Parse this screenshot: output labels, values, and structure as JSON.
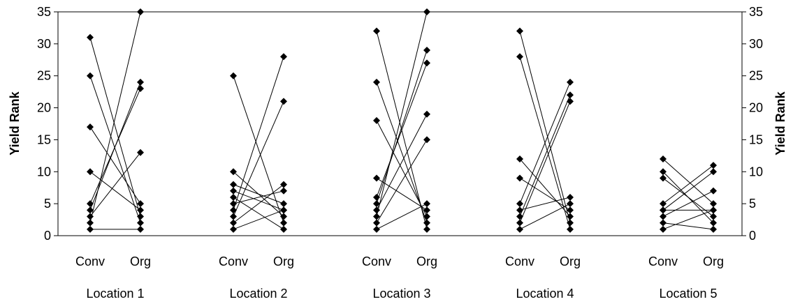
{
  "chart_data": {
    "type": "line",
    "ylabel_left": "Yield Rank",
    "ylabel_right": "Yield Rank",
    "ylim": [
      0,
      35
    ],
    "yticks": [
      0,
      5,
      10,
      15,
      20,
      25,
      30,
      35
    ],
    "grid": false,
    "legend": "none",
    "marker": "diamond",
    "line_color": "#000000",
    "categories": [
      "Conv",
      "Org"
    ],
    "groups": [
      {
        "label": "Location 1",
        "pairs": [
          [
            31,
            3
          ],
          [
            25,
            2
          ],
          [
            17,
            5
          ],
          [
            10,
            4
          ],
          [
            5,
            23
          ],
          [
            4,
            24
          ],
          [
            3,
            13
          ],
          [
            2,
            35
          ],
          [
            1,
            1
          ]
        ]
      },
      {
        "label": "Location 2",
        "pairs": [
          [
            25,
            2
          ],
          [
            10,
            3
          ],
          [
            8,
            5
          ],
          [
            7,
            4
          ],
          [
            6,
            1
          ],
          [
            5,
            7
          ],
          [
            4,
            28
          ],
          [
            3,
            21
          ],
          [
            2,
            8
          ],
          [
            1,
            4
          ]
        ]
      },
      {
        "label": "Location 3",
        "pairs": [
          [
            32,
            1
          ],
          [
            24,
            2
          ],
          [
            18,
            3
          ],
          [
            9,
            4
          ],
          [
            6,
            27
          ],
          [
            5,
            29
          ],
          [
            4,
            19
          ],
          [
            3,
            35
          ],
          [
            2,
            15
          ],
          [
            1,
            5
          ]
        ]
      },
      {
        "label": "Location 4",
        "pairs": [
          [
            32,
            2
          ],
          [
            28,
            1
          ],
          [
            12,
            3
          ],
          [
            9,
            4
          ],
          [
            5,
            24
          ],
          [
            4,
            6
          ],
          [
            3,
            22
          ],
          [
            2,
            21
          ],
          [
            1,
            5
          ]
        ]
      },
      {
        "label": "Location 5",
        "pairs": [
          [
            12,
            5
          ],
          [
            10,
            2
          ],
          [
            9,
            3
          ],
          [
            5,
            11
          ],
          [
            4,
            4
          ],
          [
            4,
            10
          ],
          [
            3,
            7
          ],
          [
            2,
            1
          ],
          [
            1,
            4
          ]
        ]
      }
    ]
  }
}
